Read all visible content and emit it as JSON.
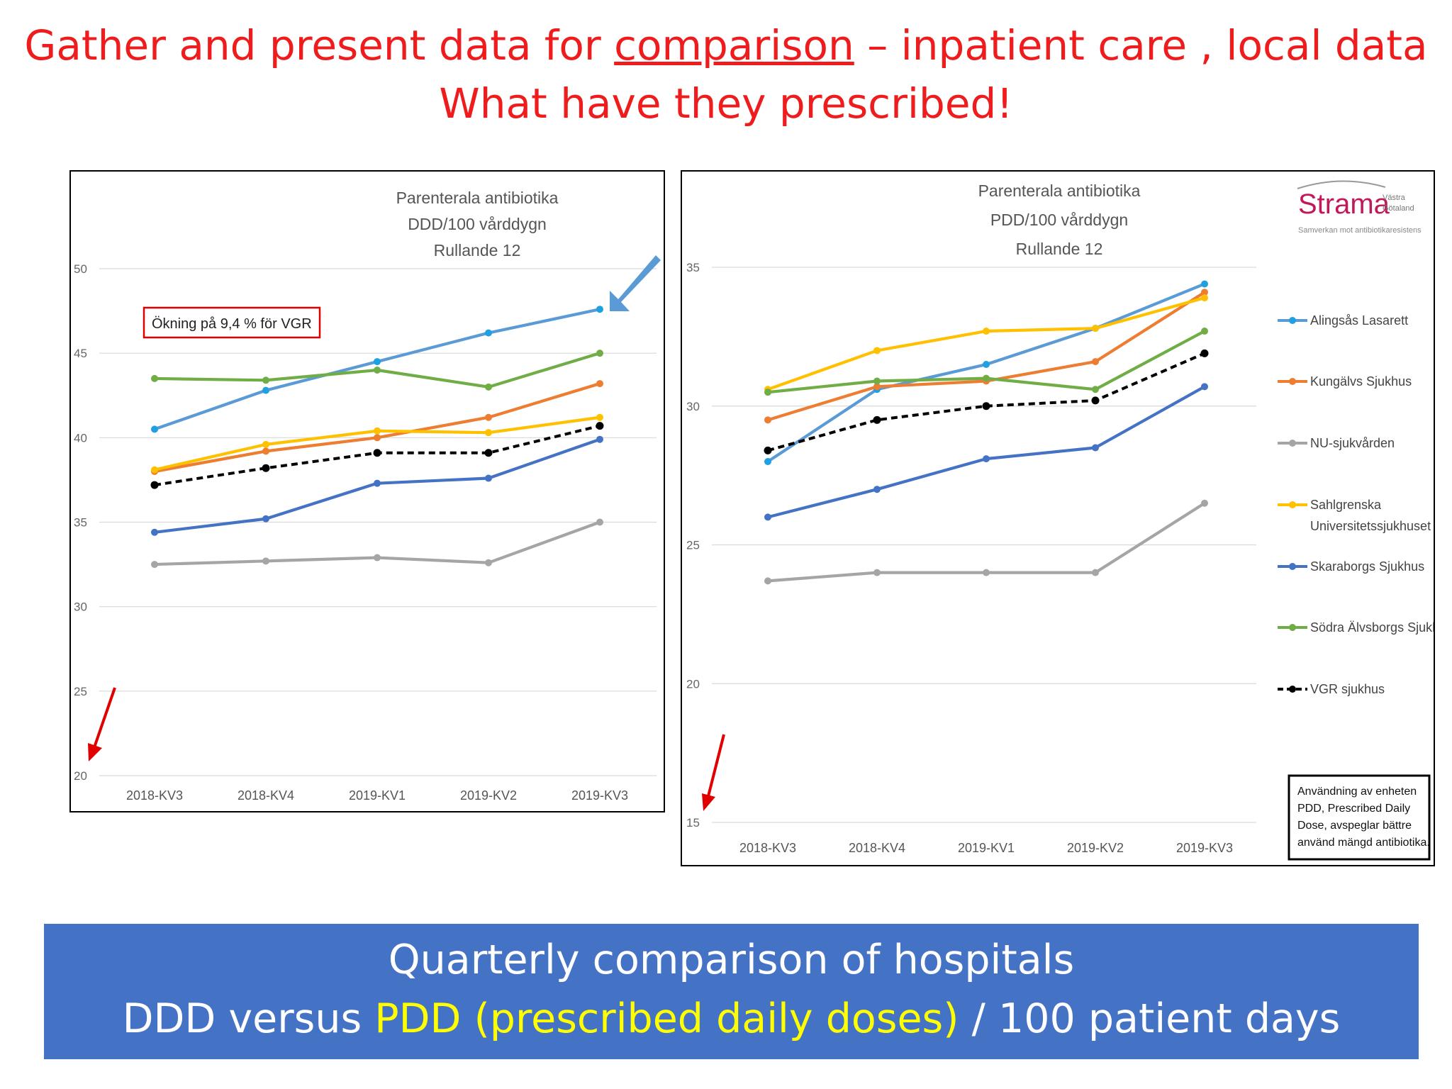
{
  "slide": {
    "title_line1_before": "Gather and present data for ",
    "title_line1_underlined": "comparison",
    "title_line1_after": " – inpatient care , local data",
    "title_line2": "What have they prescribed!",
    "banner_line1": "Quarterly comparison of hospitals",
    "banner_line2_before": "DDD versus ",
    "banner_line2_highlight": "PDD (prescribed daily doses)",
    "banner_line2_after": "  / 100 patient days",
    "colors": {
      "title": "#ee1c1c",
      "banner_bg": "#4472c4",
      "banner_text": "#ffffff",
      "highlight": "#ffff00"
    }
  },
  "left_chart": {
    "callout": "Ökning på 9,4 % för VGR"
  },
  "right_chart": {
    "logo_main": "Strama",
    "logo_region_1": "Västra",
    "logo_region_2": "Götaland",
    "logo_tagline": "Samverkan mot antibiotikaresistens",
    "note_lines": [
      "Användning av enheten",
      "PDD, Prescribed Daily",
      "Dose, avspeglar bättre",
      "använd mängd antibiotika."
    ]
  },
  "chart_data": [
    {
      "type": "line",
      "title": "Parenterala antibiotika\nDDD/100 vårddygn\nRullande 12",
      "title_lines": [
        "Parenterala antibiotika",
        "DDD/100 vårddygn",
        "Rullande 12"
      ],
      "categories": [
        "2018-KV3",
        "2018-KV4",
        "2019-KV1",
        "2019-KV2",
        "2019-KV3"
      ],
      "yticks": [
        20,
        25,
        30,
        35,
        40,
        45,
        50
      ],
      "ylim": [
        20,
        50
      ],
      "grid": true,
      "series": [
        {
          "name": "Alingsås Lasarett",
          "color": "#5b9bd5",
          "marker_color": "#1fa0e0",
          "values": [
            40.5,
            42.8,
            44.5,
            46.2,
            47.6
          ]
        },
        {
          "name": "Kungälvs Sjukhus",
          "color": "#ed7d31",
          "values": [
            38.0,
            39.2,
            40.0,
            41.2,
            43.2
          ]
        },
        {
          "name": "NU-sjukvården",
          "color": "#a5a5a5",
          "values": [
            32.5,
            32.7,
            32.9,
            32.6,
            35.0
          ]
        },
        {
          "name": "Sahlgrenska Universitetssjukhuset",
          "color": "#ffc000",
          "values": [
            38.1,
            39.6,
            40.4,
            40.3,
            41.2
          ]
        },
        {
          "name": "Skaraborgs Sjukhus",
          "color": "#4472c4",
          "values": [
            34.4,
            35.2,
            37.3,
            37.6,
            39.9
          ]
        },
        {
          "name": "Södra Älvsborgs Sjukhus",
          "color": "#70ad47",
          "values": [
            43.5,
            43.4,
            44.0,
            43.0,
            45.0
          ]
        },
        {
          "name": "VGR sjukhus",
          "color": "#000000",
          "dashed": true,
          "values": [
            37.2,
            38.2,
            39.1,
            39.1,
            40.7
          ]
        }
      ]
    },
    {
      "type": "line",
      "title": "Parenterala antibiotika\nPDD/100 vårddygn\nRullande 12",
      "title_lines": [
        "Parenterala antibiotika",
        "PDD/100 vårddygn",
        "Rullande 12"
      ],
      "categories": [
        "2018-KV3",
        "2018-KV4",
        "2019-KV1",
        "2019-KV2",
        "2019-KV3"
      ],
      "yticks": [
        15,
        20,
        25,
        30,
        35
      ],
      "ylim": [
        15,
        35
      ],
      "grid": true,
      "legend": "right",
      "legend_labels": [
        "Alingsås Lasarett",
        "Kungälvs Sjukhus",
        "NU-sjukvården",
        "Sahlgrenska",
        "Universitetssjukhuset",
        "Skaraborgs Sjukhus",
        "Södra Älvsborgs Sjukhus",
        "VGR sjukhus"
      ],
      "series": [
        {
          "name": "Alingsås Lasarett",
          "color": "#5b9bd5",
          "marker_color": "#1fa0e0",
          "values": [
            28.0,
            30.6,
            31.5,
            32.8,
            34.4
          ]
        },
        {
          "name": "Kungälvs Sjukhus",
          "color": "#ed7d31",
          "values": [
            29.5,
            30.7,
            30.9,
            31.6,
            34.1
          ]
        },
        {
          "name": "NU-sjukvården",
          "color": "#a5a5a5",
          "values": [
            23.7,
            24.0,
            24.0,
            24.0,
            26.5
          ]
        },
        {
          "name": "Sahlgrenska Universitetssjukhuset",
          "color": "#ffc000",
          "values": [
            30.6,
            32.0,
            32.7,
            32.8,
            33.9
          ]
        },
        {
          "name": "Skaraborgs Sjukhus",
          "color": "#4472c4",
          "values": [
            26.0,
            27.0,
            28.1,
            28.5,
            30.7
          ]
        },
        {
          "name": "Södra Älvsborgs Sjukhus",
          "color": "#70ad47",
          "values": [
            30.5,
            30.9,
            31.0,
            30.6,
            32.7
          ]
        },
        {
          "name": "VGR sjukhus",
          "color": "#000000",
          "dashed": true,
          "values": [
            28.4,
            29.5,
            30.0,
            30.2,
            31.9
          ]
        }
      ]
    }
  ]
}
